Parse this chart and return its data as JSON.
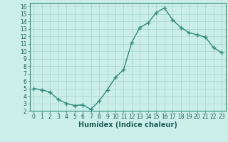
{
  "x": [
    0,
    1,
    2,
    3,
    4,
    5,
    6,
    7,
    8,
    9,
    10,
    11,
    12,
    13,
    14,
    15,
    16,
    17,
    18,
    19,
    20,
    21,
    22,
    23
  ],
  "y": [
    5.0,
    4.8,
    4.5,
    3.5,
    3.0,
    2.7,
    2.8,
    2.2,
    3.3,
    4.8,
    6.5,
    7.5,
    11.2,
    13.2,
    13.8,
    15.2,
    15.8,
    14.2,
    13.2,
    12.5,
    12.2,
    11.9,
    10.5,
    9.8
  ],
  "line_color": "#2e8b7a",
  "marker": "+",
  "markersize": 4,
  "linewidth": 1.0,
  "bg_color": "#cceee8",
  "grid_color": "#aad8d0",
  "xlabel": "Humidex (Indice chaleur)",
  "xlim": [
    -0.5,
    23.5
  ],
  "ylim": [
    2,
    16.5
  ],
  "yticks": [
    2,
    3,
    4,
    5,
    6,
    7,
    8,
    9,
    10,
    11,
    12,
    13,
    14,
    15,
    16
  ],
  "xticks": [
    0,
    1,
    2,
    3,
    4,
    5,
    6,
    7,
    8,
    9,
    10,
    11,
    12,
    13,
    14,
    15,
    16,
    17,
    18,
    19,
    20,
    21,
    22,
    23
  ],
  "tick_color": "#2e8b7a",
  "label_color": "#1a5e55",
  "xlabel_fontsize": 7,
  "tick_fontsize": 5.5
}
